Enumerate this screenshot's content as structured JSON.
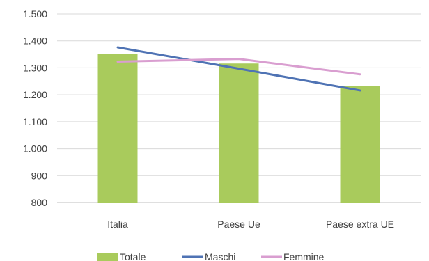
{
  "chart_data": {
    "type": "bar",
    "categories": [
      "Italia",
      "Paese Ue",
      "Paese extra UE"
    ],
    "ylim": [
      800,
      1500
    ],
    "yticks": [
      800,
      900,
      1000,
      1100,
      1200,
      1300,
      1400,
      1500
    ],
    "ytick_labels": [
      "800",
      "900",
      "1.000",
      "1.100",
      "1.200",
      "1.300",
      "1.400",
      "1.500"
    ],
    "grid": true,
    "legend_position": "bottom",
    "series": [
      {
        "name": "Totale",
        "kind": "bar",
        "color": "#a9cb5c",
        "values": [
          1352,
          1316,
          1233
        ]
      },
      {
        "name": "Maschi",
        "kind": "line",
        "color": "#4f73b4",
        "values": [
          1376,
          1297,
          1216
        ]
      },
      {
        "name": "Femmine",
        "kind": "line",
        "color": "#d99ed0",
        "values": [
          1323,
          1333,
          1276
        ]
      }
    ]
  }
}
